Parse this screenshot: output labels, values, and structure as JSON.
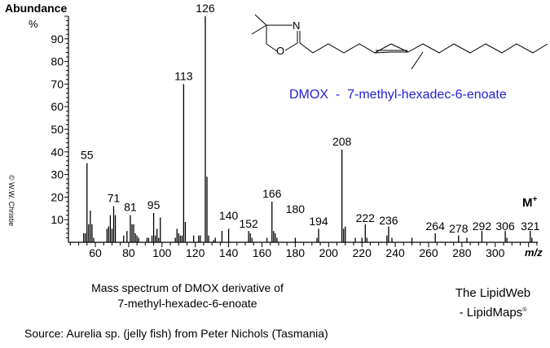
{
  "chart_data": {
    "type": "bar",
    "title": "Mass spectrum of DMOX derivative of 7-methyl-hexadec-6-enoate",
    "xlabel": "m/z",
    "ylabel": "Abundance %",
    "xlim": [
      43,
      325
    ],
    "ylim": [
      0,
      100
    ],
    "x_ticks": [
      60,
      80,
      100,
      120,
      140,
      160,
      180,
      200,
      220,
      240,
      260,
      280,
      300
    ],
    "y_ticks": [
      10,
      20,
      30,
      40,
      50,
      60,
      70,
      80,
      90
    ],
    "grid": false,
    "peaks": [
      {
        "mz": 53,
        "abundance": 4
      },
      {
        "mz": 54,
        "abundance": 4
      },
      {
        "mz": 55,
        "abundance": 35,
        "label": "55"
      },
      {
        "mz": 56,
        "abundance": 8
      },
      {
        "mz": 57,
        "abundance": 14
      },
      {
        "mz": 58,
        "abundance": 8
      },
      {
        "mz": 59,
        "abundance": 2
      },
      {
        "mz": 67,
        "abundance": 6
      },
      {
        "mz": 68,
        "abundance": 7
      },
      {
        "mz": 69,
        "abundance": 12
      },
      {
        "mz": 70,
        "abundance": 6
      },
      {
        "mz": 71,
        "abundance": 16,
        "label": "71"
      },
      {
        "mz": 72,
        "abundance": 12
      },
      {
        "mz": 77,
        "abundance": 3
      },
      {
        "mz": 79,
        "abundance": 5
      },
      {
        "mz": 81,
        "abundance": 12,
        "label": "81"
      },
      {
        "mz": 82,
        "abundance": 8
      },
      {
        "mz": 83,
        "abundance": 8
      },
      {
        "mz": 84,
        "abundance": 4
      },
      {
        "mz": 85,
        "abundance": 3
      },
      {
        "mz": 86,
        "abundance": 2
      },
      {
        "mz": 91,
        "abundance": 2
      },
      {
        "mz": 92,
        "abundance": 2
      },
      {
        "mz": 94,
        "abundance": 3
      },
      {
        "mz": 95,
        "abundance": 13,
        "label": "95"
      },
      {
        "mz": 96,
        "abundance": 3
      },
      {
        "mz": 97,
        "abundance": 6
      },
      {
        "mz": 98,
        "abundance": 2
      },
      {
        "mz": 99,
        "abundance": 11
      },
      {
        "mz": 108,
        "abundance": 2
      },
      {
        "mz": 109,
        "abundance": 6
      },
      {
        "mz": 110,
        "abundance": 4
      },
      {
        "mz": 111,
        "abundance": 3
      },
      {
        "mz": 112,
        "abundance": 3
      },
      {
        "mz": 113,
        "abundance": 70,
        "label": "113"
      },
      {
        "mz": 114,
        "abundance": 9
      },
      {
        "mz": 119,
        "abundance": 3
      },
      {
        "mz": 122,
        "abundance": 3
      },
      {
        "mz": 123,
        "abundance": 3
      },
      {
        "mz": 126,
        "abundance": 100,
        "label": "126"
      },
      {
        "mz": 127,
        "abundance": 29
      },
      {
        "mz": 128,
        "abundance": 3
      },
      {
        "mz": 131,
        "abundance": 1
      },
      {
        "mz": 132,
        "abundance": 2
      },
      {
        "mz": 136,
        "abundance": 5
      },
      {
        "mz": 140,
        "abundance": 6,
        "label": "140"
      },
      {
        "mz": 152,
        "abundance": 5,
        "label": "152"
      },
      {
        "mz": 153,
        "abundance": 4
      },
      {
        "mz": 154,
        "abundance": 2
      },
      {
        "mz": 163,
        "abundance": 2
      },
      {
        "mz": 166,
        "abundance": 18,
        "label": "166"
      },
      {
        "mz": 167,
        "abundance": 5
      },
      {
        "mz": 168,
        "abundance": 4
      },
      {
        "mz": 169,
        "abundance": 2
      },
      {
        "mz": 180,
        "abundance": 2,
        "label": "180"
      },
      {
        "mz": 193,
        "abundance": 2
      },
      {
        "mz": 194,
        "abundance": 6,
        "label": "194"
      },
      {
        "mz": 208,
        "abundance": 41,
        "label": "208"
      },
      {
        "mz": 209,
        "abundance": 6
      },
      {
        "mz": 210,
        "abundance": 7
      },
      {
        "mz": 216,
        "abundance": 2
      },
      {
        "mz": 220,
        "abundance": 2
      },
      {
        "mz": 222,
        "abundance": 8,
        "label": "222"
      },
      {
        "mz": 223,
        "abundance": 2
      },
      {
        "mz": 235,
        "abundance": 3
      },
      {
        "mz": 236,
        "abundance": 7,
        "label": "236"
      },
      {
        "mz": 238,
        "abundance": 2
      },
      {
        "mz": 250,
        "abundance": 2
      },
      {
        "mz": 264,
        "abundance": 4,
        "label": "264"
      },
      {
        "mz": 278,
        "abundance": 3,
        "label": "278"
      },
      {
        "mz": 283,
        "abundance": 2
      },
      {
        "mz": 292,
        "abundance": 5,
        "label": "292"
      },
      {
        "mz": 306,
        "abundance": 5,
        "label": "306"
      },
      {
        "mz": 307,
        "abundance": 2
      },
      {
        "mz": 321,
        "abundance": 5,
        "label": "321"
      },
      {
        "mz": 322,
        "abundance": 2
      }
    ],
    "annotations": [
      "M+",
      "DMOX  -  7-methyl-hexadec-6-enoate"
    ]
  },
  "axis": {
    "ylabel": "Abundance",
    "yunit": "%",
    "xlabel": "m/z",
    "molecular_ion": "M",
    "molecular_ion_sup": "+"
  },
  "structure": {
    "atom_n": "N",
    "atom_o": "O",
    "compound_label": "DMOX  -  7-methyl-hexadec-6-enoate"
  },
  "footer": {
    "caption_line1": "Mass spectrum of DMOX derivative of",
    "caption_line2": "7-methyl-hexadec-6-enoate",
    "brand_line1": "The LipidWeb",
    "brand_line2": "- LipidMaps",
    "brand_mark": "®",
    "source": "Source:  Aurelia sp. (jelly fish) from Peter Nichols (Tasmania)",
    "copyright": "© W.W. Christie"
  },
  "colors": {
    "compound_label": "#2323d9",
    "axis": "#000000"
  }
}
